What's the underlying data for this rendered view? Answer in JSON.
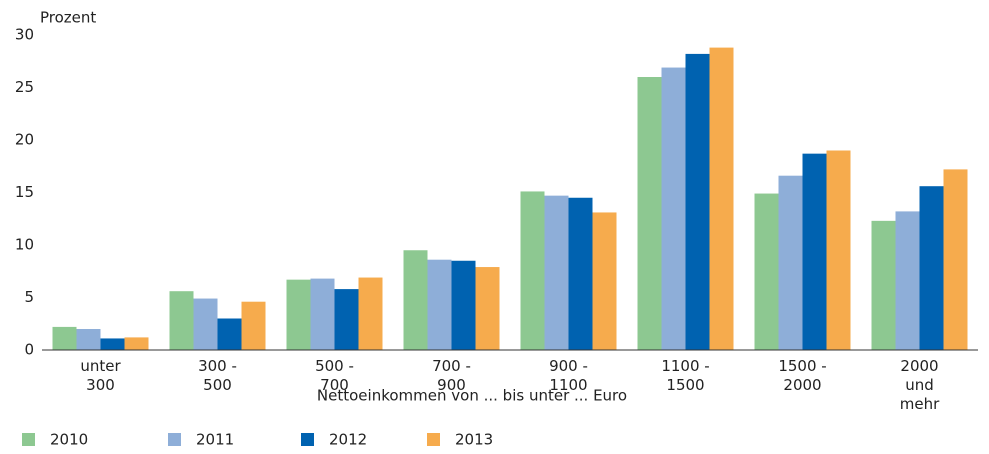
{
  "chart_data": {
    "type": "bar",
    "ylabel": "Prozent",
    "xlabel": "Nettoeinkommen von ... bis unter ... Euro",
    "categories": [
      "unter 300",
      "300 - 500",
      "500 - 700",
      "700 - 900",
      "900 - 1100",
      "1100 - 1500",
      "1500 - 2000",
      "2000 und mehr"
    ],
    "series": [
      {
        "name": "2010",
        "color": "#8dc891",
        "values": [
          2.2,
          5.6,
          6.7,
          9.5,
          15.1,
          26.0,
          14.9,
          12.3
        ]
      },
      {
        "name": "2011",
        "color": "#8eaed8",
        "values": [
          2.0,
          4.9,
          6.8,
          8.6,
          14.7,
          26.9,
          16.6,
          13.2
        ]
      },
      {
        "name": "2012",
        "color": "#0062b0",
        "values": [
          1.1,
          3.0,
          5.8,
          8.5,
          14.5,
          28.2,
          18.7,
          15.6
        ]
      },
      {
        "name": "2013",
        "color": "#f6ab4d",
        "values": [
          1.2,
          4.6,
          6.9,
          7.9,
          13.1,
          28.8,
          19.0,
          17.2
        ]
      }
    ],
    "ylim": [
      0,
      30
    ],
    "yticks": [
      0,
      5,
      10,
      15,
      20,
      25,
      30
    ],
    "grid": false,
    "legend": "bottom"
  }
}
